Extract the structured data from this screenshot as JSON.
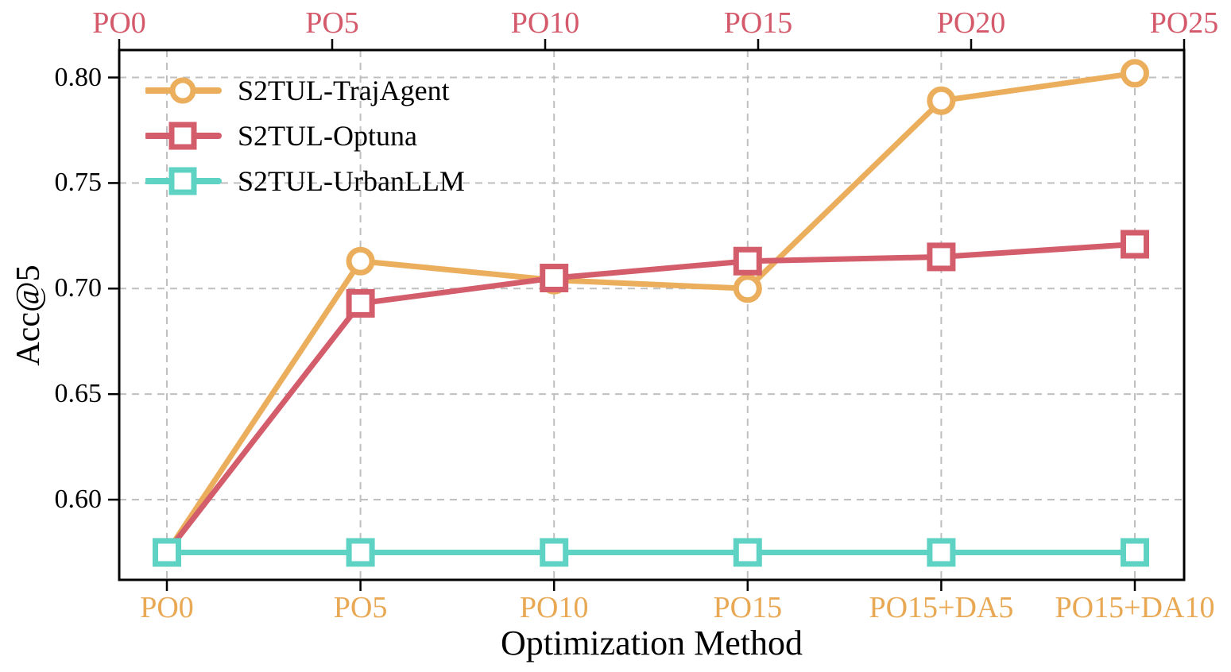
{
  "chart_data": {
    "type": "line",
    "title": "",
    "xlabel": "Optimization Method",
    "ylabel": "Acc@5",
    "categories_bottom": [
      "PO0",
      "PO5",
      "PO10",
      "PO15",
      "PO15+DA5",
      "PO15+DA10"
    ],
    "categories_top": [
      "PO0",
      "PO5",
      "PO10",
      "PO15",
      "PO20",
      "PO25"
    ],
    "y_tick_labels": [
      "0.80",
      "0.75",
      "0.70",
      "0.65",
      "0.60"
    ],
    "y_tick_values": [
      0.8,
      0.75,
      0.7,
      0.65,
      0.6
    ],
    "ylim": [
      0.562,
      0.813
    ],
    "grid": true,
    "grid_style": "dashed",
    "legend_position": "upper-left",
    "series": [
      {
        "name": "S2TUL-TrajAgent",
        "marker": "circle",
        "color": "#EBAE5C",
        "values": [
          0.575,
          0.713,
          0.704,
          0.7,
          0.789,
          0.802
        ]
      },
      {
        "name": "S2TUL-Optuna",
        "marker": "square",
        "color": "#D45D6C",
        "values": [
          0.575,
          0.693,
          0.705,
          0.713,
          0.715,
          0.721
        ]
      },
      {
        "name": "S2TUL-UrbanLLM",
        "marker": "square",
        "color": "#5ED3C4",
        "values": [
          0.575,
          0.575,
          0.575,
          0.575,
          0.575,
          0.575
        ]
      }
    ],
    "colors": {
      "top_tick_label": "#D4596B",
      "bottom_tick_label": "#E9A854",
      "y_tick_label": "#000000",
      "grid": "#BFBFBF",
      "axis_border": "#000000",
      "marker_face": "#FFFFFF"
    }
  }
}
